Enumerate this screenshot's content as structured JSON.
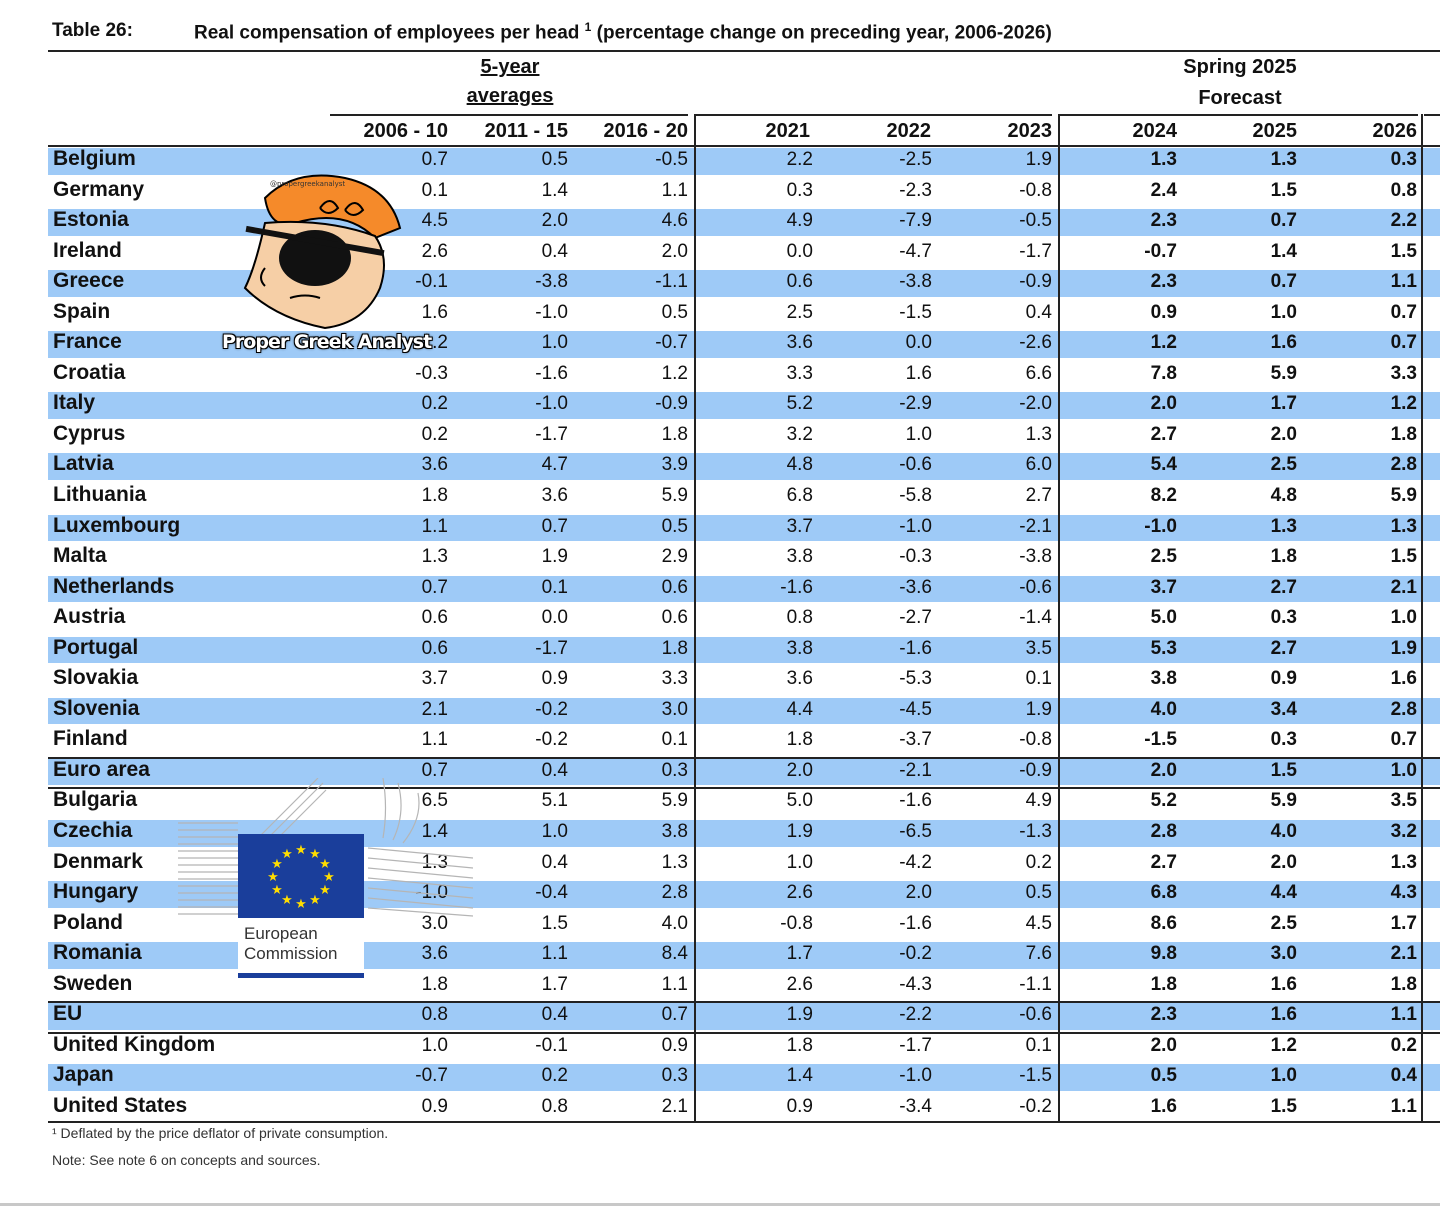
{
  "title": {
    "number": "Table 26:",
    "text": "Real compensation of employees per head",
    "sup": "1",
    "rest": " (percentage change on preceding year, 2006-2026)"
  },
  "header": {
    "avg_label_1": "5-year",
    "avg_label_2": "averages",
    "forecast_label_1": "Spring 2025",
    "forecast_label_2": "Forecast",
    "years": [
      "2006 - 10",
      "2011 - 15",
      "2016 - 20",
      "2021",
      "2022",
      "2023",
      "2024",
      "2025",
      "2026"
    ]
  },
  "rows": [
    {
      "name": "Belgium",
      "v": [
        "0.7",
        "0.5",
        "-0.5",
        "2.2",
        "-2.5",
        "1.9",
        "1.3",
        "1.3",
        "0.3"
      ]
    },
    {
      "name": "Germany",
      "v": [
        "0.1",
        "1.4",
        "1.1",
        "0.3",
        "-2.3",
        "-0.8",
        "2.4",
        "1.5",
        "0.8"
      ]
    },
    {
      "name": "Estonia",
      "v": [
        "4.5",
        "2.0",
        "4.6",
        "4.9",
        "-7.9",
        "-0.5",
        "2.3",
        "0.7",
        "2.2"
      ]
    },
    {
      "name": "Ireland",
      "v": [
        "2.6",
        "0.4",
        "2.0",
        "0.0",
        "-4.7",
        "-1.7",
        "-0.7",
        "1.4",
        "1.5"
      ]
    },
    {
      "name": "Greece",
      "v": [
        "-0.1",
        "-3.8",
        "-1.1",
        "0.6",
        "-3.8",
        "-0.9",
        "2.3",
        "0.7",
        "1.1"
      ]
    },
    {
      "name": "Spain",
      "v": [
        "1.6",
        "-1.0",
        "0.5",
        "2.5",
        "-1.5",
        "0.4",
        "0.9",
        "1.0",
        "0.7"
      ]
    },
    {
      "name": "France",
      "v": [
        "1.2",
        "1.0",
        "-0.7",
        "3.6",
        "0.0",
        "-2.6",
        "1.2",
        "1.6",
        "0.7"
      ]
    },
    {
      "name": "Croatia",
      "v": [
        "-0.3",
        "-1.6",
        "1.2",
        "3.3",
        "1.6",
        "6.6",
        "7.8",
        "5.9",
        "3.3"
      ]
    },
    {
      "name": "Italy",
      "v": [
        "0.2",
        "-1.0",
        "-0.9",
        "5.2",
        "-2.9",
        "-2.0",
        "2.0",
        "1.7",
        "1.2"
      ]
    },
    {
      "name": "Cyprus",
      "v": [
        "0.2",
        "-1.7",
        "1.8",
        "3.2",
        "1.0",
        "1.3",
        "2.7",
        "2.0",
        "1.8"
      ]
    },
    {
      "name": "Latvia",
      "v": [
        "3.6",
        "4.7",
        "3.9",
        "4.8",
        "-0.6",
        "6.0",
        "5.4",
        "2.5",
        "2.8"
      ]
    },
    {
      "name": "Lithuania",
      "v": [
        "1.8",
        "3.6",
        "5.9",
        "6.8",
        "-5.8",
        "2.7",
        "8.2",
        "4.8",
        "5.9"
      ]
    },
    {
      "name": "Luxembourg",
      "v": [
        "1.1",
        "0.7",
        "0.5",
        "3.7",
        "-1.0",
        "-2.1",
        "-1.0",
        "1.3",
        "1.3"
      ]
    },
    {
      "name": "Malta",
      "v": [
        "1.3",
        "1.9",
        "2.9",
        "3.8",
        "-0.3",
        "-3.8",
        "2.5",
        "1.8",
        "1.5"
      ]
    },
    {
      "name": "Netherlands",
      "v": [
        "0.7",
        "0.1",
        "0.6",
        "-1.6",
        "-3.6",
        "-0.6",
        "3.7",
        "2.7",
        "2.1"
      ]
    },
    {
      "name": "Austria",
      "v": [
        "0.6",
        "0.0",
        "0.6",
        "0.8",
        "-2.7",
        "-1.4",
        "5.0",
        "0.3",
        "1.0"
      ]
    },
    {
      "name": "Portugal",
      "v": [
        "0.6",
        "-1.7",
        "1.8",
        "3.8",
        "-1.6",
        "3.5",
        "5.3",
        "2.7",
        "1.9"
      ]
    },
    {
      "name": "Slovakia",
      "v": [
        "3.7",
        "0.9",
        "3.3",
        "3.6",
        "-5.3",
        "0.1",
        "3.8",
        "0.9",
        "1.6"
      ]
    },
    {
      "name": "Slovenia",
      "v": [
        "2.1",
        "-0.2",
        "3.0",
        "4.4",
        "-4.5",
        "1.9",
        "4.0",
        "3.4",
        "2.8"
      ]
    },
    {
      "name": "Finland",
      "v": [
        "1.1",
        "-0.2",
        "0.1",
        "1.8",
        "-3.7",
        "-0.8",
        "-1.5",
        "0.3",
        "0.7"
      ]
    },
    {
      "name": "Euro area",
      "v": [
        "0.7",
        "0.4",
        "0.3",
        "2.0",
        "-2.1",
        "-0.9",
        "2.0",
        "1.5",
        "1.0"
      ]
    },
    {
      "name": "Bulgaria",
      "v": [
        "6.5",
        "5.1",
        "5.9",
        "5.0",
        "-1.6",
        "4.9",
        "5.2",
        "5.9",
        "3.5"
      ]
    },
    {
      "name": "Czechia",
      "v": [
        "1.4",
        "1.0",
        "3.8",
        "1.9",
        "-6.5",
        "-1.3",
        "2.8",
        "4.0",
        "3.2"
      ]
    },
    {
      "name": "Denmark",
      "v": [
        "1.3",
        "0.4",
        "1.3",
        "1.0",
        "-4.2",
        "0.2",
        "2.7",
        "2.0",
        "1.3"
      ]
    },
    {
      "name": "Hungary",
      "v": [
        "-1.0",
        "-0.4",
        "2.8",
        "2.6",
        "2.0",
        "0.5",
        "6.8",
        "4.4",
        "4.3"
      ]
    },
    {
      "name": "Poland",
      "v": [
        "3.0",
        "1.5",
        "4.0",
        "-0.8",
        "-1.6",
        "4.5",
        "8.6",
        "2.5",
        "1.7"
      ]
    },
    {
      "name": "Romania",
      "v": [
        "3.6",
        "1.1",
        "8.4",
        "1.7",
        "-0.2",
        "7.6",
        "9.8",
        "3.0",
        "2.1"
      ]
    },
    {
      "name": "Sweden",
      "v": [
        "1.8",
        "1.7",
        "1.1",
        "2.6",
        "-4.3",
        "-1.1",
        "1.8",
        "1.6",
        "1.8"
      ]
    },
    {
      "name": "EU",
      "v": [
        "0.8",
        "0.4",
        "0.7",
        "1.9",
        "-2.2",
        "-0.6",
        "2.3",
        "1.6",
        "1.1"
      ]
    },
    {
      "name": "United Kingdom",
      "v": [
        "1.0",
        "-0.1",
        "0.9",
        "1.8",
        "-1.7",
        "0.1",
        "2.0",
        "1.2",
        "0.2"
      ]
    },
    {
      "name": "Japan",
      "v": [
        "-0.7",
        "0.2",
        "0.3",
        "1.4",
        "-1.0",
        "-1.5",
        "0.5",
        "1.0",
        "0.4"
      ]
    },
    {
      "name": "United States",
      "v": [
        "0.9",
        "0.8",
        "2.1",
        "0.9",
        "-3.4",
        "-0.2",
        "1.6",
        "1.5",
        "1.1"
      ]
    }
  ],
  "footnotes": {
    "note1": "¹ Deflated by the price deflator of private consumption.",
    "note2": "Note: See note 6 on concepts and sources."
  },
  "overlays": {
    "watermark_caption": "Proper Greek Analyst",
    "watermark_handle": "@propergreekanalyst",
    "logo_text_1": "European",
    "logo_text_2": "Commission",
    "colors": {
      "row_shade": "#9ecaf7",
      "eu_blue": "#1a3e9b",
      "eu_star": "#ffdd00",
      "dexter_hair": "#f58a2a"
    }
  }
}
